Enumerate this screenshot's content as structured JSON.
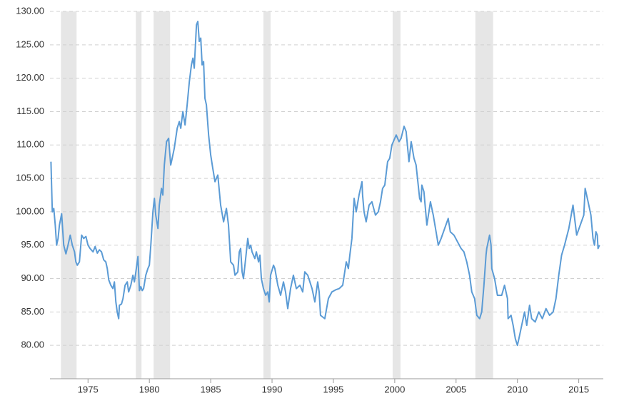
{
  "chart_data": {
    "type": "line",
    "color": "#5b9bd5",
    "shade_color": "#e6e6e6",
    "grid": true,
    "xlim": [
      1971.9,
      2017
    ],
    "xticks": [
      1975,
      1980,
      1985,
      1990,
      1995,
      2000,
      2005,
      2010,
      2015
    ],
    "ylim": [
      75,
      130
    ],
    "yticks": [
      {
        "value": 80,
        "label": "80.00"
      },
      {
        "value": 85,
        "label": "85.00"
      },
      {
        "value": 90,
        "label": "90.00"
      },
      {
        "value": 95,
        "label": "95.00"
      },
      {
        "value": 100,
        "label": "100.00"
      },
      {
        "value": 105,
        "label": "105.00"
      },
      {
        "value": 110,
        "label": "110.00"
      },
      {
        "value": 115,
        "label": "115.00"
      },
      {
        "value": 120,
        "label": "120.00"
      },
      {
        "value": 125,
        "label": "125.00"
      },
      {
        "value": 130,
        "label": "130.00"
      }
    ],
    "shaded_ranges": [
      [
        1972.79,
        1974.07
      ],
      [
        1978.9,
        1979.36
      ],
      [
        1980.35,
        1981.69
      ],
      [
        1989.3,
        1989.88
      ],
      [
        1999.83,
        2000.47
      ],
      [
        2006.57,
        2008.02
      ]
    ],
    "x": [
      1971.98,
      1972.09,
      1972.21,
      1972.33,
      1972.44,
      1972.56,
      1972.67,
      1972.85,
      1973.02,
      1973.2,
      1973.37,
      1973.55,
      1973.72,
      1973.9,
      1974.01,
      1974.13,
      1974.3,
      1974.48,
      1974.65,
      1974.83,
      1975.0,
      1975.17,
      1975.41,
      1975.58,
      1975.76,
      1975.93,
      1976.1,
      1976.28,
      1976.45,
      1976.57,
      1976.69,
      1976.86,
      1977.03,
      1977.15,
      1977.27,
      1977.38,
      1977.5,
      1977.56,
      1977.73,
      1977.85,
      1978.02,
      1978.2,
      1978.31,
      1978.49,
      1978.66,
      1978.78,
      1978.9,
      1979.07,
      1979.19,
      1979.3,
      1979.42,
      1979.53,
      1979.71,
      1979.88,
      1980.0,
      1980.12,
      1980.29,
      1980.41,
      1980.52,
      1980.7,
      1980.81,
      1980.99,
      1981.1,
      1981.22,
      1981.4,
      1981.57,
      1981.74,
      1981.86,
      1982.03,
      1982.27,
      1982.44,
      1982.56,
      1982.73,
      1982.91,
      1983.08,
      1983.26,
      1983.43,
      1983.55,
      1983.66,
      1983.84,
      1983.95,
      1984.07,
      1984.19,
      1984.3,
      1984.42,
      1984.53,
      1984.65,
      1984.83,
      1985.0,
      1985.17,
      1985.35,
      1985.58,
      1985.81,
      1986.05,
      1986.28,
      1986.45,
      1986.63,
      1986.86,
      1986.98,
      1987.21,
      1987.33,
      1987.44,
      1987.56,
      1987.67,
      1987.85,
      1988.02,
      1988.14,
      1988.26,
      1988.37,
      1988.6,
      1988.72,
      1988.9,
      1989.01,
      1989.13,
      1989.3,
      1989.48,
      1989.65,
      1989.77,
      1989.88,
      1990.12,
      1990.23,
      1990.47,
      1990.7,
      1990.93,
      1991.1,
      1991.28,
      1991.51,
      1991.74,
      1991.98,
      1992.27,
      1992.5,
      1992.67,
      1992.91,
      1993.26,
      1993.49,
      1993.72,
      1993.84,
      1993.95,
      1994.3,
      1994.59,
      1994.88,
      1995.17,
      1995.47,
      1995.76,
      1996.05,
      1996.22,
      1996.34,
      1996.51,
      1996.69,
      1996.86,
      1997.09,
      1997.33,
      1997.38,
      1997.5,
      1997.67,
      1997.91,
      1998.14,
      1998.43,
      1998.66,
      1998.84,
      1999.01,
      1999.19,
      1999.42,
      1999.59,
      1999.77,
      2000.12,
      2000.35,
      2000.52,
      2000.76,
      2000.93,
      2001.16,
      2001.34,
      2001.57,
      2001.74,
      2002.03,
      2002.15,
      2002.21,
      2002.38,
      2002.5,
      2002.62,
      2002.91,
      2003.14,
      2003.37,
      2003.55,
      2003.78,
      2004.07,
      2004.36,
      2004.53,
      2004.83,
      2005.12,
      2005.41,
      2005.64,
      2005.87,
      2006.1,
      2006.28,
      2006.51,
      2006.69,
      2006.92,
      2007.09,
      2007.27,
      2007.44,
      2007.5,
      2007.73,
      2007.85,
      2007.91,
      2008.14,
      2008.37,
      2008.72,
      2008.95,
      2009.19,
      2009.24,
      2009.48,
      2009.65,
      2009.83,
      2010.0,
      2010.12,
      2010.35,
      2010.58,
      2010.76,
      2010.99,
      2011.16,
      2011.45,
      2011.74,
      2012.03,
      2012.33,
      2012.62,
      2012.91,
      2013.14,
      2013.37,
      2013.6,
      2013.84,
      2014.19,
      2014.53,
      2014.83,
      2015.12,
      2015.41,
      2015.52,
      2015.76,
      2015.99,
      2016.16,
      2016.28,
      2016.4,
      2016.51,
      2016.57,
      2016.69
    ],
    "values": [
      107.5,
      100,
      100.5,
      98,
      95,
      96,
      98,
      99.7,
      95,
      93.7,
      95,
      96.5,
      95,
      94,
      92.5,
      92,
      92.5,
      96.5,
      96,
      96.3,
      95,
      94.5,
      94,
      94.8,
      93.8,
      94.3,
      94,
      92.8,
      92.5,
      91.5,
      89.8,
      89,
      88.5,
      89.5,
      86.5,
      85,
      84,
      86,
      86.2,
      87,
      89,
      89.5,
      88,
      89,
      90.5,
      89.5,
      91,
      93.3,
      88.2,
      88.8,
      88.2,
      88.5,
      90.5,
      91.5,
      92,
      95,
      100,
      102,
      99.5,
      97.5,
      101,
      103.5,
      102.5,
      107,
      110.5,
      111,
      107,
      108,
      109.5,
      112.5,
      113.5,
      112.5,
      115,
      113,
      116,
      119.5,
      122,
      123,
      121.5,
      128,
      128.5,
      125.5,
      126,
      122,
      122.5,
      117,
      116,
      111.5,
      108.5,
      106.5,
      104.5,
      105.5,
      101,
      98.5,
      100.5,
      98,
      92.5,
      92,
      90.5,
      91,
      94,
      94.5,
      91,
      90,
      93,
      96,
      94.5,
      95,
      94,
      93,
      94,
      92.5,
      93.5,
      90,
      88.5,
      87.5,
      88,
      86.5,
      90.5,
      92,
      91.5,
      89,
      87.5,
      89.5,
      88,
      85.5,
      88.5,
      90.5,
      88.5,
      89,
      88,
      91,
      90.5,
      88.5,
      86.5,
      89.5,
      88,
      84.5,
      84,
      87,
      88,
      88.3,
      88.5,
      89,
      92.5,
      91.5,
      93.5,
      96,
      102,
      100,
      102.5,
      104.5,
      102.5,
      100,
      98.5,
      101,
      101.5,
      99.5,
      100,
      101.5,
      103.5,
      104,
      107.5,
      108,
      110,
      111.5,
      110.5,
      111,
      112.8,
      112,
      107.5,
      110.5,
      108,
      107,
      102,
      101.5,
      104,
      103,
      100.5,
      98,
      101.5,
      99.5,
      97,
      95,
      96,
      97.5,
      99,
      97,
      96.5,
      95.5,
      94.5,
      94,
      92.5,
      90.5,
      88,
      87,
      84.5,
      84,
      85,
      89,
      93.5,
      94.5,
      96.5,
      95,
      91.5,
      90,
      87.5,
      87.5,
      89,
      87,
      84,
      84.5,
      83,
      81,
      80,
      81,
      83,
      85,
      83,
      86,
      84,
      83.5,
      85,
      84,
      85.5,
      84.5,
      85,
      87,
      90.5,
      93.5,
      95,
      97.5,
      101,
      96.5,
      98,
      99.5,
      103.5,
      101.5,
      99.5,
      96,
      95,
      97,
      96.5,
      94.5,
      95
    ]
  }
}
